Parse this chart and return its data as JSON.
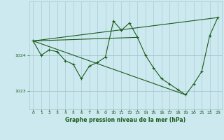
{
  "title": "Graphe pression niveau de la mer (hPa)",
  "bg_color": "#cce9f0",
  "plot_bg_color": "#cce9f0",
  "line_color": "#1a5c1a",
  "marker_color": "#1a5c1a",
  "grid_major_color": "#aac8d4",
  "grid_minor_color": "#c0dce6",
  "tick_label_color": "#1a5c1a",
  "title_color": "#1a5c1a",
  "xlim": [
    -0.5,
    23.5
  ],
  "ylim": [
    1022.5,
    1025.5
  ],
  "yticks": [
    1023,
    1024
  ],
  "xticks": [
    0,
    1,
    2,
    3,
    4,
    5,
    6,
    7,
    8,
    9,
    10,
    11,
    12,
    13,
    14,
    15,
    16,
    17,
    18,
    19,
    20,
    21,
    22,
    23
  ],
  "series_main": {
    "x": [
      0,
      1,
      2,
      3,
      4,
      5,
      6,
      7,
      8,
      9,
      10,
      11,
      12,
      13,
      14,
      15,
      16,
      17,
      18,
      19,
      20,
      21,
      22,
      23
    ],
    "y": [
      1024.4,
      1024.0,
      1024.15,
      1024.1,
      1023.85,
      1023.75,
      1023.35,
      1023.7,
      1023.8,
      1023.95,
      1024.95,
      1024.7,
      1024.9,
      1024.5,
      1024.0,
      1023.65,
      1023.35,
      1023.2,
      1023.05,
      1022.9,
      1023.2,
      1023.55,
      1024.55,
      1025.05
    ]
  },
  "series_straight": [
    {
      "x": [
        0,
        23
      ],
      "y": [
        1024.4,
        1025.05
      ]
    },
    {
      "x": [
        0,
        19
      ],
      "y": [
        1024.4,
        1022.9
      ]
    },
    {
      "x": [
        0,
        13
      ],
      "y": [
        1024.4,
        1024.5
      ]
    }
  ]
}
